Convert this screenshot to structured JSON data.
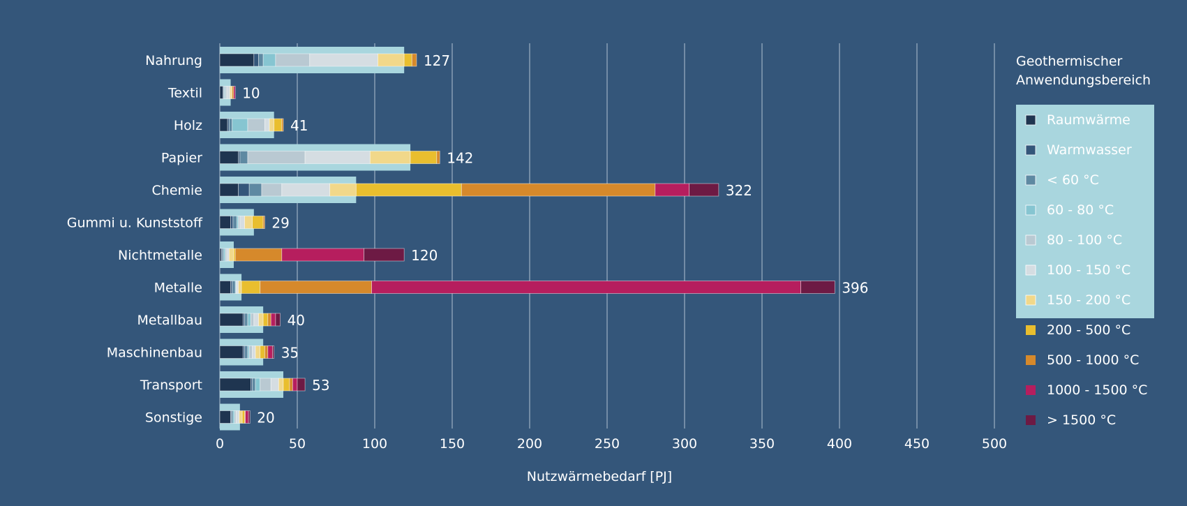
{
  "chart_data": {
    "type": "bar",
    "orientation": "horizontal",
    "stacked": true,
    "xlabel": "Nutzwärmebedarf [PJ]",
    "xlim": [
      0,
      500
    ],
    "xticks": [
      0,
      50,
      100,
      150,
      200,
      250,
      300,
      350,
      400,
      450,
      500
    ],
    "grid": "vertical",
    "legend_title": "Geothermischer Anwendungsbereich",
    "legend_placement": "right",
    "geothermal_band_color": "#a9d6de",
    "categories": [
      "Nahrung",
      "Textil",
      "Holz",
      "Papier",
      "Chemie",
      "Gummi u. Kunststoff",
      "Nichtmetalle",
      "Metalle",
      "Metallbau",
      "Maschinenbau",
      "Transport",
      "Sonstige"
    ],
    "totals": [
      127,
      10,
      41,
      142,
      322,
      29,
      120,
      396,
      40,
      35,
      53,
      20
    ],
    "geothermal_totals": [
      119,
      7,
      35,
      123,
      88,
      22,
      9,
      14,
      28,
      28,
      41,
      13
    ],
    "series": [
      {
        "name": "Raumwärme",
        "color": "#1f3550",
        "values": [
          22,
          2,
          5,
          12,
          12,
          7,
          1,
          7,
          15,
          15,
          20,
          7
        ]
      },
      {
        "name": "Warmwasser",
        "color": "#34567a",
        "values": [
          3,
          0.5,
          1,
          1,
          7,
          1.5,
          0.5,
          1,
          1,
          1,
          1,
          0.5
        ]
      },
      {
        "name": "< 60 °C",
        "color": "#5e89a2",
        "values": [
          3,
          0.5,
          2,
          5,
          8,
          2.5,
          1,
          2,
          2,
          2,
          2,
          1
        ]
      },
      {
        "name": "60 - 80 °C",
        "color": "#86c5d1",
        "values": [
          8,
          0.5,
          10,
          0,
          0,
          1,
          1,
          0.5,
          2,
          1,
          3,
          1
        ]
      },
      {
        "name": "80 - 100 °C",
        "color": "#b9c9d2",
        "values": [
          22,
          1,
          11,
          37,
          13,
          1,
          1,
          0.5,
          2,
          2,
          7,
          1
        ]
      },
      {
        "name": "100 - 150 °C",
        "color": "#d5dde2",
        "values": [
          44,
          2,
          3,
          42,
          31,
          3,
          1.5,
          1,
          3,
          2,
          5,
          2
        ]
      },
      {
        "name": "150 - 200 °C",
        "color": "#f1d88a",
        "values": [
          17,
          1,
          3,
          26,
          17,
          5,
          3,
          2,
          3,
          3,
          3,
          2
        ]
      },
      {
        "name": "200 - 500 °C",
        "color": "#e9be2e",
        "values": [
          5,
          0.5,
          5,
          17,
          68,
          7,
          1,
          12,
          3,
          3,
          4,
          1.5
        ]
      },
      {
        "name": "500 - 1000 °C",
        "color": "#d6892b",
        "values": [
          3,
          1,
          1,
          2,
          125,
          1,
          30,
          72,
          2,
          2,
          2,
          0.5
        ]
      },
      {
        "name": "1000 - 1500 °C",
        "color": "#b61e5e",
        "values": [
          0,
          1,
          0,
          0,
          22,
          0,
          53,
          277,
          3,
          3,
          3,
          2
        ]
      },
      {
        "name": "> 1500 °C",
        "color": "#6d1a44",
        "values": [
          0,
          0,
          0,
          0,
          19,
          0,
          26,
          22,
          3,
          1,
          5,
          1
        ]
      }
    ],
    "legend_geothermal_series_count": 7
  }
}
